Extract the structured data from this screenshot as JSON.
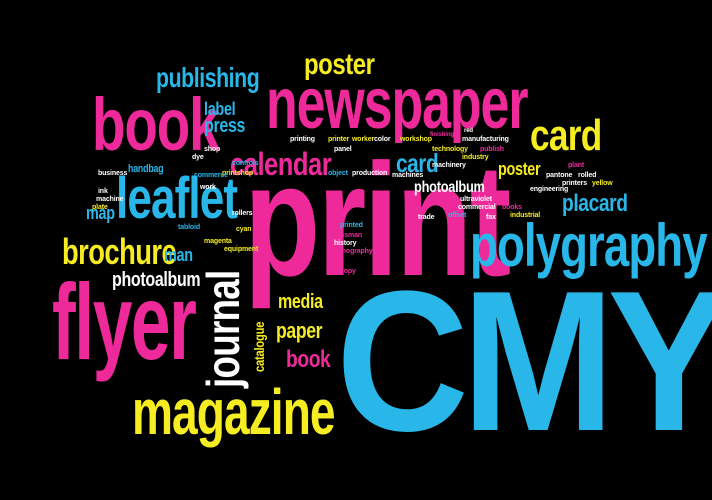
{
  "colors": {
    "background": "#000000",
    "cyan": "#29b6e8",
    "magenta": "#ee2a9b",
    "yellow": "#f6ec22",
    "white": "#ffffff"
  },
  "words": {
    "cmyk": "CMYK",
    "print": "print",
    "newspaper": "newspaper",
    "book": "book",
    "book_small": "book",
    "flyer": "flyer",
    "magazine": "magazine",
    "polygraphy": "polygraphy",
    "leaflet": "leaflet",
    "brochure": "brochure",
    "journal": "journal",
    "calendar": "calendar",
    "card": "card",
    "card_small": "card",
    "poster": "poster",
    "poster_small": "poster",
    "publishing": "publishing",
    "label": "label",
    "press": "press",
    "placard": "placard",
    "photoalbum": "photoalbum",
    "photoalbum_small": "photoalbum",
    "media": "media",
    "paper": "paper",
    "catalogue": "catalogue",
    "map": "map",
    "man": "man",
    "handbag": "handbag",
    "business": "business",
    "printing": "printing",
    "printer": "printer",
    "worker": "worker",
    "color": "color",
    "workshop": "workshop",
    "finishing": "finishing",
    "red": "red",
    "manufacturing": "manufacturing",
    "technology": "technology",
    "industry": "industry",
    "machinery": "machinery",
    "plant": "plant",
    "printers": "printers",
    "yellow": "yellow",
    "engineering": "engineering",
    "rolled": "rolled",
    "pantone": "pantone",
    "ultraviolet": "ultraviolet",
    "commercial": "commercial",
    "offset": "offset",
    "trade": "trade",
    "industrial": "industrial",
    "rollers": "rollers",
    "magenta": "magenta",
    "equipment": "equipment",
    "pressman": "pressman",
    "history": "history",
    "production": "production",
    "object": "object",
    "machines": "machines",
    "shop": "shop",
    "printshop": "printshop",
    "commerce": "commerce",
    "work": "work",
    "ink": "ink",
    "machine": "machine",
    "cyan": "cyan",
    "dye": "dye",
    "panel": "panel",
    "publish": "publish",
    "books": "books",
    "fax": "fax",
    "tabloid": "tabloid",
    "controls": "controls",
    "plate": "plate",
    "lithography": "lithography",
    "printed": "printed",
    "copy": "copy"
  }
}
